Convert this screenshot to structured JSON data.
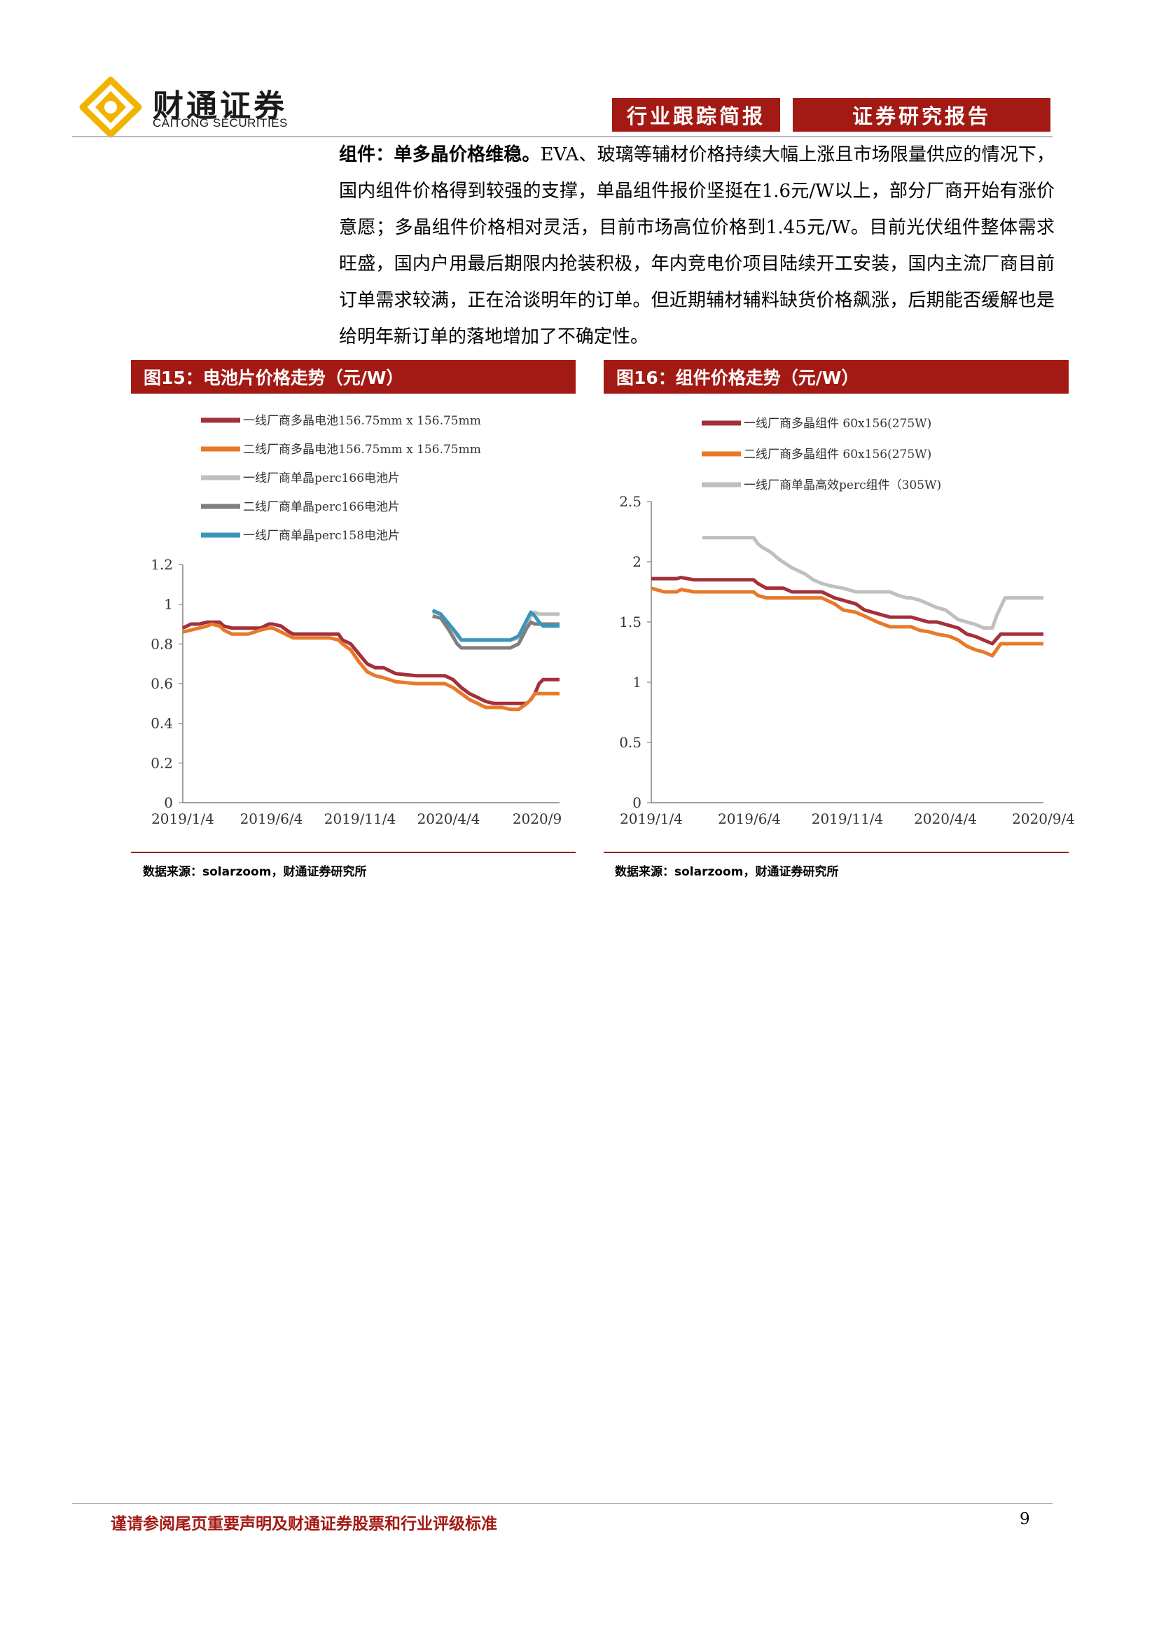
{
  "header": {
    "brand_cn": "财通证券",
    "brand_en": "CAITONG SECURITIES",
    "tag_left": "行业跟踪简报",
    "tag_right": "证券研究报告"
  },
  "body": {
    "lead": "组件：单多晶价格维稳。",
    "text": "EVA、玻璃等辅材价格持续大幅上涨且市场限量供应的情况下，国内组件价格得到较强的支撑，单晶组件报价坚挺在1.6元/W以上，部分厂商开始有涨价意愿；多晶组件价格相对灵活，目前市场高位价格到1.45元/W。目前光伏组件整体需求旺盛，国内户用最后期限内抢装积极，年内竞电价项目陆续开工安装，国内主流厂商目前订单需求较满，正在洽谈明年的订单。但近期辅材辅料缺货价格飙涨，后期能否缓解也是给明年新订单的落地增加了不确定性。"
  },
  "figures": {
    "fig15_title": "图15：电池片价格走势（元/W）",
    "fig16_title": "图16：组件价格走势（元/W）",
    "fig15_source": "数据来源：solarzoom，财通证券研究所",
    "fig16_source": "数据来源：solarzoom，财通证券研究所"
  },
  "chart_data": [
    {
      "type": "line",
      "title": "图15：电池片价格走势（元/W）",
      "x_ticks": [
        "2019/1/4",
        "2019/6/4",
        "2019/11/4",
        "2020/4/4",
        "2020/9"
      ],
      "y_ticks": [
        "0",
        "0.2",
        "0.4",
        "0.6",
        "0.8",
        "1",
        "1.2"
      ],
      "ylim": [
        0,
        1.2
      ],
      "xlim": [
        0,
        92
      ],
      "legend_position": "top-left",
      "series": [
        {
          "name": "一线厂商多晶电池156.75mm x 156.75mm",
          "color": "#a3303a",
          "x": [
            0,
            2,
            4,
            6,
            7,
            9,
            10,
            12,
            14,
            16,
            19,
            21,
            22,
            24,
            26,
            27,
            30,
            32,
            36,
            38,
            39,
            41,
            43,
            45,
            47,
            49,
            52,
            57,
            59,
            60,
            62,
            64,
            66,
            68,
            70,
            72,
            73,
            74,
            76,
            77,
            78,
            80,
            81,
            82,
            84,
            85,
            86,
            87,
            88,
            92
          ],
          "y": [
            0.88,
            0.9,
            0.9,
            0.91,
            0.91,
            0.91,
            0.89,
            0.88,
            0.88,
            0.88,
            0.88,
            0.9,
            0.9,
            0.89,
            0.86,
            0.85,
            0.85,
            0.85,
            0.85,
            0.85,
            0.82,
            0.8,
            0.75,
            0.7,
            0.68,
            0.68,
            0.65,
            0.64,
            0.64,
            0.64,
            0.64,
            0.64,
            0.62,
            0.58,
            0.55,
            0.53,
            0.52,
            0.51,
            0.5,
            0.5,
            0.5,
            0.5,
            0.5,
            0.5,
            0.5,
            0.52,
            0.55,
            0.6,
            0.62,
            0.62
          ]
        },
        {
          "name": "二线厂商多晶电池156.75mm x 156.75mm",
          "color": "#e8792a",
          "x": [
            0,
            2,
            4,
            6,
            7,
            9,
            10,
            12,
            14,
            16,
            19,
            21,
            22,
            24,
            26,
            27,
            30,
            32,
            36,
            38,
            39,
            41,
            43,
            45,
            47,
            49,
            52,
            57,
            59,
            60,
            62,
            64,
            66,
            68,
            70,
            72,
            73,
            74,
            76,
            77,
            78,
            80,
            81,
            82,
            84,
            85,
            86,
            87,
            88,
            92
          ],
          "y": [
            0.86,
            0.87,
            0.88,
            0.89,
            0.9,
            0.89,
            0.87,
            0.85,
            0.85,
            0.85,
            0.87,
            0.88,
            0.88,
            0.86,
            0.84,
            0.83,
            0.83,
            0.83,
            0.83,
            0.82,
            0.8,
            0.77,
            0.71,
            0.66,
            0.64,
            0.63,
            0.61,
            0.6,
            0.6,
            0.6,
            0.6,
            0.6,
            0.58,
            0.55,
            0.52,
            0.5,
            0.49,
            0.48,
            0.48,
            0.48,
            0.48,
            0.47,
            0.47,
            0.47,
            0.5,
            0.52,
            0.55,
            0.55,
            0.55,
            0.55
          ]
        },
        {
          "name": "一线厂商单晶perc166电池片",
          "color": "#bfbfbf",
          "x": [
            61,
            63,
            65,
            67,
            68,
            70,
            72,
            74,
            76,
            78,
            80,
            82,
            83,
            84,
            85,
            86,
            87,
            88,
            92
          ],
          "y": [
            0.96,
            0.95,
            0.9,
            0.84,
            0.82,
            0.82,
            0.82,
            0.82,
            0.82,
            0.82,
            0.82,
            0.83,
            0.86,
            0.9,
            0.94,
            0.96,
            0.95,
            0.95,
            0.95
          ]
        },
        {
          "name": "二线厂商单晶perc166电池片",
          "color": "#7f7f7f",
          "x": [
            61,
            63,
            65,
            67,
            68,
            70,
            72,
            74,
            76,
            78,
            80,
            82,
            83,
            84,
            85,
            86,
            87,
            88,
            92
          ],
          "y": [
            0.94,
            0.93,
            0.87,
            0.8,
            0.78,
            0.78,
            0.78,
            0.78,
            0.78,
            0.78,
            0.78,
            0.8,
            0.84,
            0.88,
            0.91,
            0.9,
            0.9,
            0.9,
            0.9
          ]
        },
        {
          "name": "一线厂商单晶perc158电池片",
          "color": "#3a96b8",
          "x": [
            61,
            63,
            65,
            67,
            68,
            70,
            72,
            74,
            76,
            78,
            80,
            82,
            83,
            84,
            85,
            86,
            87,
            88,
            92
          ],
          "y": [
            0.97,
            0.95,
            0.9,
            0.85,
            0.82,
            0.82,
            0.82,
            0.82,
            0.82,
            0.82,
            0.82,
            0.84,
            0.88,
            0.92,
            0.96,
            0.94,
            0.91,
            0.89,
            0.89
          ]
        }
      ]
    },
    {
      "type": "line",
      "title": "图16：组件价格走势（元/W）",
      "x_ticks": [
        "2019/1/4",
        "2019/6/4",
        "2019/11/4",
        "2020/4/4",
        "2020/9/4"
      ],
      "y_ticks": [
        "0",
        "0.5",
        "1",
        "1.5",
        "2",
        "2.5"
      ],
      "ylim": [
        0,
        2.5
      ],
      "xlim": [
        0,
        92
      ],
      "legend_position": "top-left",
      "series": [
        {
          "name": "一线厂商多晶组件 60x156(275W)",
          "color": "#a3303a",
          "x": [
            0,
            3,
            6,
            7,
            10,
            13,
            16,
            20,
            24,
            25,
            27,
            31,
            33,
            35,
            38,
            40,
            43,
            45,
            48,
            50,
            53,
            56,
            59,
            61,
            63,
            65,
            67,
            70,
            72,
            74,
            76,
            78,
            80,
            82,
            92
          ],
          "y": [
            1.86,
            1.86,
            1.86,
            1.87,
            1.85,
            1.85,
            1.85,
            1.85,
            1.85,
            1.82,
            1.78,
            1.78,
            1.75,
            1.75,
            1.75,
            1.75,
            1.7,
            1.68,
            1.65,
            1.6,
            1.57,
            1.54,
            1.54,
            1.54,
            1.52,
            1.5,
            1.5,
            1.47,
            1.45,
            1.4,
            1.38,
            1.35,
            1.32,
            1.4,
            1.4
          ]
        },
        {
          "name": "二线厂商多晶组件 60x156(275W)",
          "color": "#e8792a",
          "x": [
            0,
            3,
            6,
            7,
            10,
            13,
            16,
            20,
            24,
            25,
            27,
            31,
            33,
            35,
            38,
            40,
            43,
            45,
            48,
            50,
            53,
            56,
            59,
            61,
            63,
            65,
            67,
            70,
            72,
            74,
            76,
            78,
            80,
            82,
            92
          ],
          "y": [
            1.78,
            1.75,
            1.75,
            1.77,
            1.75,
            1.75,
            1.75,
            1.75,
            1.75,
            1.72,
            1.7,
            1.7,
            1.7,
            1.7,
            1.7,
            1.7,
            1.65,
            1.6,
            1.58,
            1.55,
            1.5,
            1.46,
            1.46,
            1.46,
            1.43,
            1.42,
            1.4,
            1.38,
            1.35,
            1.3,
            1.27,
            1.25,
            1.22,
            1.32,
            1.32
          ]
        },
        {
          "name": "一线厂商单晶高效perc组件（305W)",
          "color": "#bfbfbf",
          "x": [
            12,
            14,
            16,
            18,
            21,
            24,
            25,
            26,
            28,
            30,
            33,
            36,
            38,
            40,
            42,
            45,
            48,
            50,
            52,
            54,
            56,
            58,
            60,
            61,
            63,
            65,
            67,
            69,
            72,
            74,
            76,
            78,
            80,
            81,
            83,
            85,
            92
          ],
          "y": [
            2.2,
            2.2,
            2.2,
            2.2,
            2.2,
            2.2,
            2.15,
            2.12,
            2.08,
            2.02,
            1.95,
            1.9,
            1.85,
            1.82,
            1.8,
            1.78,
            1.75,
            1.75,
            1.75,
            1.75,
            1.75,
            1.72,
            1.7,
            1.7,
            1.68,
            1.65,
            1.62,
            1.6,
            1.52,
            1.5,
            1.48,
            1.45,
            1.45,
            1.55,
            1.7,
            1.7,
            1.7
          ]
        }
      ]
    }
  ],
  "footer": {
    "disclaimer": "谨请参阅尾页重要声明及财通证券股票和行业评级标准",
    "page_number": "9"
  }
}
